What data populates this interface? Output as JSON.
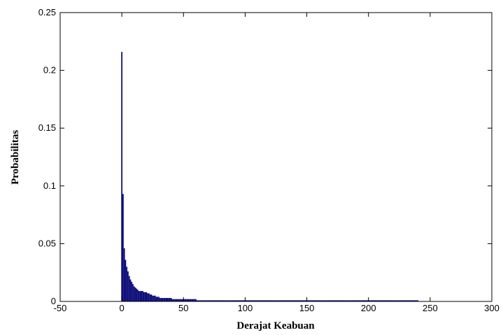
{
  "chart_data": {
    "type": "bar",
    "xlabel": "Derajat Keabuan",
    "ylabel": "Probabilitas",
    "color": "#0b0b7a",
    "xlim": [
      -50,
      300
    ],
    "xticks": [
      -50,
      0,
      50,
      100,
      150,
      200,
      250,
      300
    ],
    "ylim": [
      0,
      0.25
    ],
    "yticks": [
      0,
      0.05,
      0.1,
      0.15,
      0.2,
      0.25
    ],
    "x": [
      0,
      1,
      2,
      3,
      4,
      5,
      6,
      7,
      8,
      9,
      10,
      11,
      12,
      13,
      14,
      15,
      16,
      17,
      18,
      19,
      20,
      21,
      22,
      23,
      24,
      25,
      26,
      27,
      28,
      29,
      30,
      31,
      32,
      33,
      34,
      35,
      36,
      37,
      38,
      39,
      40,
      41,
      42,
      43,
      44,
      45,
      46,
      47,
      48,
      49,
      50,
      51,
      52,
      53,
      54,
      55,
      56,
      57,
      58,
      59,
      60,
      61,
      62,
      63,
      64,
      65,
      66,
      67,
      68,
      69,
      70,
      71,
      72,
      73,
      74,
      75,
      76,
      77,
      78,
      79,
      80,
      81,
      82,
      83,
      84,
      85,
      86,
      87,
      88,
      89,
      90,
      91,
      92,
      93,
      94,
      95,
      96,
      97,
      98,
      99,
      100,
      101,
      102,
      103,
      104,
      105,
      106,
      107,
      108,
      109,
      110,
      111,
      112,
      113,
      114,
      115,
      116,
      117,
      118,
      119,
      120,
      121,
      122,
      123,
      124,
      125,
      126,
      127,
      128,
      129,
      130,
      131,
      132,
      133,
      134,
      135,
      136,
      137,
      138,
      139,
      140,
      141,
      142,
      143,
      144,
      145,
      146,
      147,
      148,
      149,
      150,
      151,
      152,
      153,
      154,
      155,
      156,
      157,
      158,
      159,
      160,
      161,
      162,
      163,
      164,
      165,
      166,
      167,
      168,
      169,
      170,
      171,
      172,
      173,
      174,
      175,
      176,
      177,
      178,
      179,
      180,
      181,
      182,
      183,
      184,
      185,
      186,
      187,
      188,
      189,
      190,
      191,
      192,
      193,
      194,
      195,
      196,
      197,
      198,
      199,
      200,
      201,
      202,
      203,
      204,
      205,
      206,
      207,
      208,
      209,
      210,
      211,
      212,
      213,
      214,
      215,
      216,
      217,
      218,
      219,
      220,
      221,
      222,
      223,
      224,
      225,
      226,
      227,
      228,
      229,
      230,
      231,
      232,
      233,
      234,
      235,
      236,
      237,
      238,
      239,
      240,
      241,
      242,
      243,
      244,
      245,
      246,
      247,
      248,
      249,
      250,
      251,
      252,
      253,
      254,
      255
    ],
    "values": [
      0.216,
      0.093,
      0.046,
      0.036,
      0.03,
      0.026,
      0.022,
      0.019,
      0.017,
      0.015,
      0.013,
      0.012,
      0.011,
      0.01,
      0.009,
      0.009,
      0.009,
      0.009,
      0.008,
      0.008,
      0.008,
      0.007,
      0.007,
      0.006,
      0.006,
      0.005,
      0.005,
      0.005,
      0.004,
      0.004,
      0.004,
      0.003,
      0.003,
      0.003,
      0.003,
      0.003,
      0.003,
      0.003,
      0.003,
      0.003,
      0.003,
      0.002,
      0.002,
      0.002,
      0.002,
      0.002,
      0.002,
      0.002,
      0.002,
      0.002,
      0.002,
      0.002,
      0.002,
      0.002,
      0.002,
      0.002,
      0.002,
      0.002,
      0.002,
      0.002,
      0.002,
      0.001,
      0.001,
      0.001,
      0.001,
      0.001,
      0.001,
      0.001,
      0.001,
      0.001,
      0.001,
      0.001,
      0.001,
      0.001,
      0.001,
      0.001,
      0.001,
      0.001,
      0.001,
      0.001,
      0.001,
      0.001,
      0.001,
      0.001,
      0.001,
      0.001,
      0.001,
      0.001,
      0.001,
      0.001,
      0.001,
      0.001,
      0.001,
      0.001,
      0.001,
      0.001,
      0.001,
      0.001,
      0.001,
      0.001,
      0.001,
      0.001,
      0.001,
      0.001,
      0.001,
      0.001,
      0.001,
      0.001,
      0.001,
      0.001,
      0.001,
      0.001,
      0.001,
      0.001,
      0.001,
      0.001,
      0.001,
      0.001,
      0.001,
      0.001,
      0.001,
      0.001,
      0.001,
      0.001,
      0.001,
      0.001,
      0.001,
      0.001,
      0.001,
      0.001,
      0.001,
      0.001,
      0.001,
      0.001,
      0.001,
      0.001,
      0.001,
      0.001,
      0.001,
      0.001,
      0.001,
      0.001,
      0.001,
      0.001,
      0.001,
      0.001,
      0.001,
      0.001,
      0.001,
      0.001,
      0.001,
      0.001,
      0.001,
      0.001,
      0.001,
      0.001,
      0.001,
      0.001,
      0.001,
      0.001,
      0.001,
      0.001,
      0.001,
      0.001,
      0.001,
      0.001,
      0.001,
      0.001,
      0.001,
      0.001,
      0.001,
      0.001,
      0.001,
      0.001,
      0.001,
      0.001,
      0.001,
      0.001,
      0.001,
      0.001,
      0.001,
      0.001,
      0.001,
      0.001,
      0.001,
      0.001,
      0.001,
      0.001,
      0.001,
      0.001,
      0.001,
      0.001,
      0.001,
      0.001,
      0.001,
      0.001,
      0.001,
      0.001,
      0.001,
      0.001,
      0.001,
      0.001,
      0.001,
      0.001,
      0.001,
      0.001,
      0.001,
      0.001,
      0.001,
      0.001,
      0.001,
      0.001,
      0.001,
      0.001,
      0.001,
      0.001,
      0.001,
      0.001,
      0.001,
      0.001,
      0.001,
      0.001,
      0.001,
      0.001,
      0.001,
      0.001,
      0.001,
      0.001,
      0.001,
      0.001,
      0.001,
      0.001,
      0.001,
      0.001,
      0.001,
      0.001,
      0.001,
      0.001,
      0.001,
      0.001,
      0.001,
      0,
      0,
      0,
      0,
      0,
      0,
      0,
      0,
      0,
      0,
      0,
      0,
      0,
      0,
      0
    ]
  }
}
